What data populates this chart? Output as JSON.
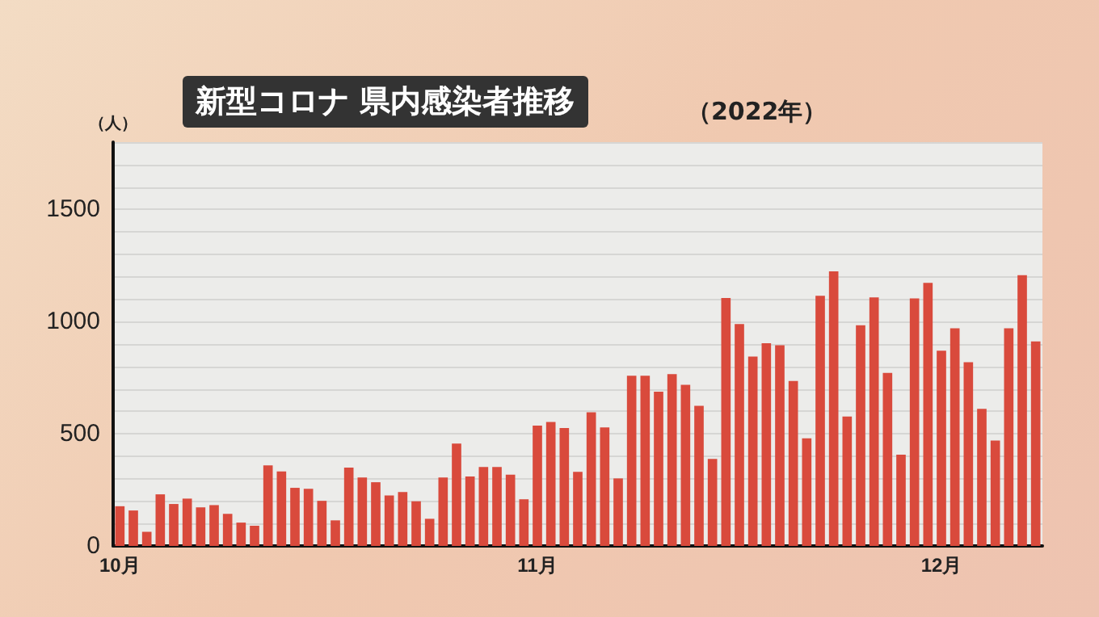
{
  "chart_data": {
    "type": "bar",
    "title": "新型コロナ 県内感染者推移",
    "subtitle": "（2022年）",
    "ylabel": "（人）",
    "categories": [
      "10月",
      null,
      null,
      null,
      null,
      null,
      null,
      null,
      null,
      null,
      null,
      null,
      null,
      null,
      null,
      null,
      null,
      null,
      null,
      null,
      null,
      null,
      null,
      null,
      null,
      null,
      null,
      null,
      null,
      null,
      null,
      "11月",
      null,
      null,
      null,
      null,
      null,
      null,
      null,
      null,
      null,
      null,
      null,
      null,
      null,
      null,
      null,
      null,
      null,
      null,
      null,
      null,
      null,
      null,
      null,
      null,
      null,
      null,
      null,
      null,
      null,
      "12月",
      null,
      null,
      null,
      null,
      null,
      null,
      null
    ],
    "values": [
      177,
      158,
      63,
      230,
      187,
      211,
      172,
      182,
      143,
      104,
      90,
      359,
      332,
      259,
      255,
      201,
      114,
      349,
      305,
      284,
      225,
      240,
      199,
      121,
      305,
      456,
      310,
      352,
      352,
      318,
      208,
      536,
      553,
      526,
      330,
      596,
      528,
      301,
      759,
      759,
      688,
      766,
      718,
      625,
      388,
      1105,
      989,
      844,
      904,
      895,
      735,
      480,
      1115,
      1224,
      577,
      984,
      1108,
      771,
      407,
      1103,
      1173,
      870,
      970,
      819,
      611,
      470,
      970,
      1207,
      912
    ],
    "color": "#d94a3c",
    "ylim": [
      0,
      1800
    ],
    "yticks": [
      0,
      {
        "value": 100,
        "label": null
      },
      {
        "value": 200,
        "label": null
      },
      {
        "value": 300,
        "label": null
      },
      {
        "value": 400,
        "label": null
      },
      500,
      {
        "value": 600,
        "label": null
      },
      {
        "value": 700,
        "label": null
      },
      {
        "value": 800,
        "label": null
      },
      {
        "value": 900,
        "label": null
      },
      1000,
      {
        "value": 1100,
        "label": null
      },
      {
        "value": 1200,
        "label": null
      },
      {
        "value": 1300,
        "label": null
      },
      {
        "value": 1400,
        "label": null
      },
      1500,
      {
        "value": 1600,
        "label": null
      },
      {
        "value": 1700,
        "label": null
      },
      {
        "value": 1800,
        "label": null
      }
    ],
    "grid": "y"
  }
}
